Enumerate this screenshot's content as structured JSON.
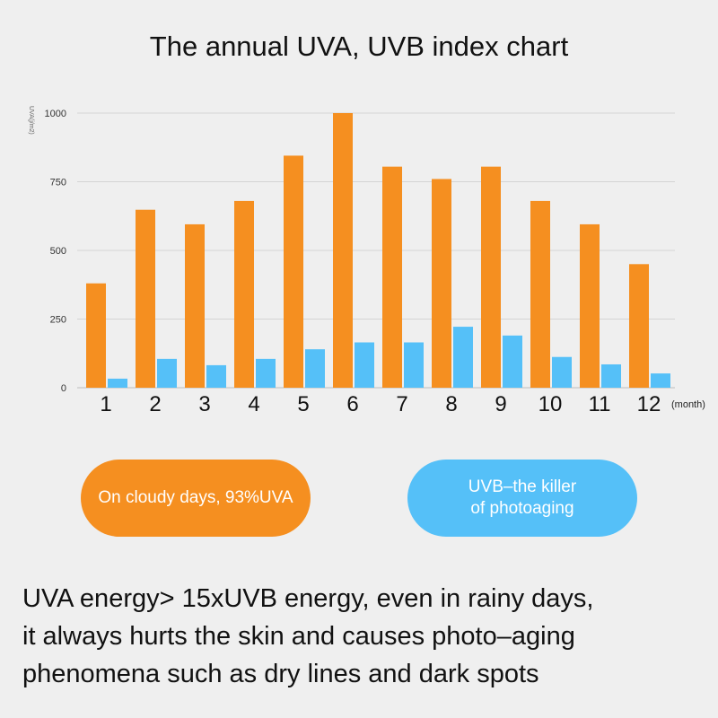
{
  "title": "The annual UVA, UVB index chart",
  "chart_data": {
    "type": "bar",
    "categories": [
      "1",
      "2",
      "3",
      "4",
      "5",
      "6",
      "7",
      "8",
      "9",
      "10",
      "11",
      "12"
    ],
    "series": [
      {
        "name": "UVA",
        "color": "#f58f20",
        "values": [
          380,
          648,
          595,
          680,
          845,
          1000,
          805,
          760,
          805,
          680,
          595,
          450
        ]
      },
      {
        "name": "UVB",
        "color": "#55c0f8",
        "values": [
          33,
          105,
          82,
          105,
          140,
          165,
          165,
          222,
          190,
          112,
          85,
          52
        ]
      }
    ],
    "ylabel": "UVA(j/m2)",
    "x_unit": "(month)",
    "ylim": [
      0,
      1000
    ],
    "yticks": [
      0,
      250,
      500,
      750,
      1000
    ],
    "grid": true,
    "legend": "none"
  },
  "callouts": {
    "uva": {
      "lines": [
        "On cloudy days, 93%UVA"
      ]
    },
    "uvb": {
      "lines": [
        "UVB–the killer",
        "of photoaging"
      ]
    }
  },
  "caption": {
    "lines": [
      "UVA energy> 15xUVB energy, even in rainy days,",
      "it always hurts the skin and causes photo–aging",
      "phenomena such as dry lines and dark spots"
    ]
  }
}
